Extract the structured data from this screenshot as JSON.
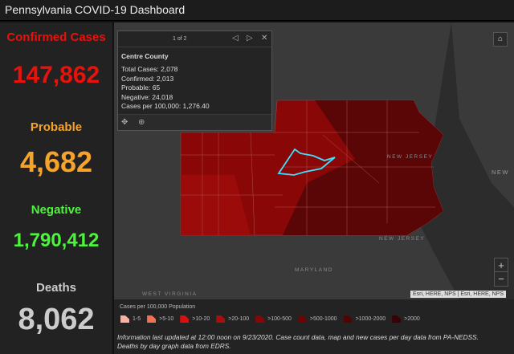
{
  "header": {
    "title": "Pennsylvania COVID-19 Dashboard"
  },
  "stats": [
    {
      "label": "Confirmed Cases",
      "value": "147,862",
      "color": "#e8120c"
    },
    {
      "label": "Probable",
      "value": "4,682",
      "color": "#f5a32a"
    },
    {
      "label": "Negative",
      "value": "1,790,412",
      "color": "#4cf53b"
    },
    {
      "label": "Deaths",
      "value": "8,062",
      "color": "#cccccc"
    }
  ],
  "popup": {
    "pager": "1 of 2",
    "title": "Centre County",
    "rows": [
      "Total Cases: 2,078",
      "Confirmed: 2,013",
      "Probable: 65",
      "Negative: 24,018",
      "Cases per 100,000: 1,276.40"
    ]
  },
  "map": {
    "labels": [
      "NEW JERSEY",
      "NEW JERSEY",
      "MARYLAND",
      "WEST VIRGINIA",
      "NEW"
    ],
    "attribution": "Esri, HERE, NPS | Esri, HERE, NPS",
    "zoom_in": "+",
    "zoom_out": "−"
  },
  "legend": {
    "title": "Cases per 100,000 Population",
    "items": [
      {
        "label": "1-5",
        "color": "#f7b1a0"
      },
      {
        "label": ">5-10",
        "color": "#f4714f"
      },
      {
        "label": ">10-20",
        "color": "#d9110d"
      },
      {
        "label": ">20-100",
        "color": "#aa0e0c"
      },
      {
        "label": ">100-500",
        "color": "#880606"
      },
      {
        "label": ">500-1000",
        "color": "#6c0606"
      },
      {
        "label": ">1000-2000",
        "color": "#520405"
      },
      {
        "label": ">2000",
        "color": "#3a0204"
      }
    ]
  },
  "info": {
    "line1": "Information last updated at 12:00 noon on 9/23/2020. Case count data, map and new cases per day data from PA-NEDSS.",
    "line2": "Deaths by day graph data from EDRS."
  }
}
